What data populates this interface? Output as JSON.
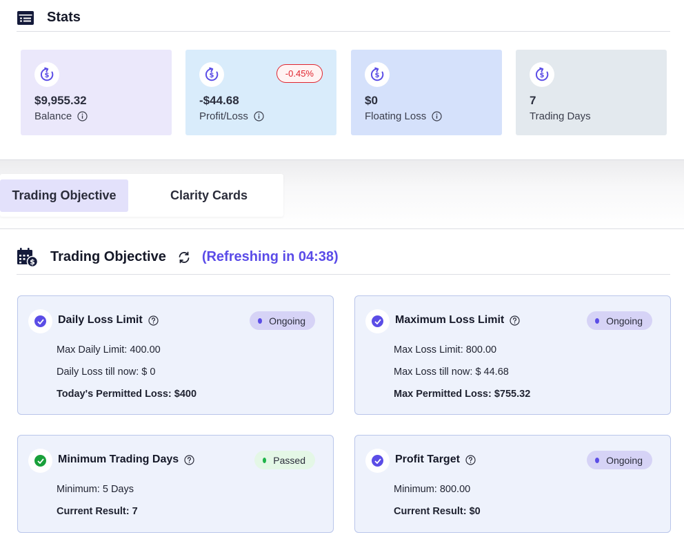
{
  "stats": {
    "title": "Stats",
    "cards": [
      {
        "value": "$9,955.32",
        "label": "Balance",
        "info": true,
        "bg": "#ebe8fb"
      },
      {
        "value": "-$44.68",
        "label": "Profit/Loss",
        "info": true,
        "badge": "-0.45%",
        "bg": "#d9ecfb"
      },
      {
        "value": "$0",
        "label": "Floating Loss",
        "info": true,
        "bg": "#d5e1fb"
      },
      {
        "value": "7",
        "label": "Trading Days",
        "info": false,
        "bg": "#e3e9ee"
      }
    ]
  },
  "tabs": [
    {
      "label": "Trading Objective",
      "active": true
    },
    {
      "label": "Clarity Cards",
      "active": false
    }
  ],
  "objective": {
    "title": "Trading Objective",
    "refresh_text": "(Refreshing in 04:38)",
    "cards": [
      {
        "title": "Daily Loss Limit",
        "status": "Ongoing",
        "lines": [
          "Max Daily Limit: 400.00",
          "Daily Loss till now: $ 0"
        ],
        "bold_line": "Today's Permitted Loss: $400"
      },
      {
        "title": "Maximum Loss Limit",
        "status": "Ongoing",
        "lines": [
          "Max Loss Limit: 800.00",
          "Max Loss till now: $ 44.68"
        ],
        "bold_line": "Max Permitted Loss: $755.32"
      },
      {
        "title": "Minimum Trading Days",
        "status": "Passed",
        "lines": [
          "Minimum: 5 Days"
        ],
        "bold_line": "Current Result: 7"
      },
      {
        "title": "Profit Target",
        "status": "Ongoing",
        "lines": [
          "Minimum: 800.00"
        ],
        "bold_line": "Current Result: $0"
      }
    ]
  },
  "colors": {
    "accent": "#5a4be8",
    "check_purple": "#5b4de6",
    "check_green": "#19a03a",
    "ongoing_dot": "#5b4de6",
    "passed_dot": "#1fb44a",
    "loss_red": "#e0242e"
  }
}
